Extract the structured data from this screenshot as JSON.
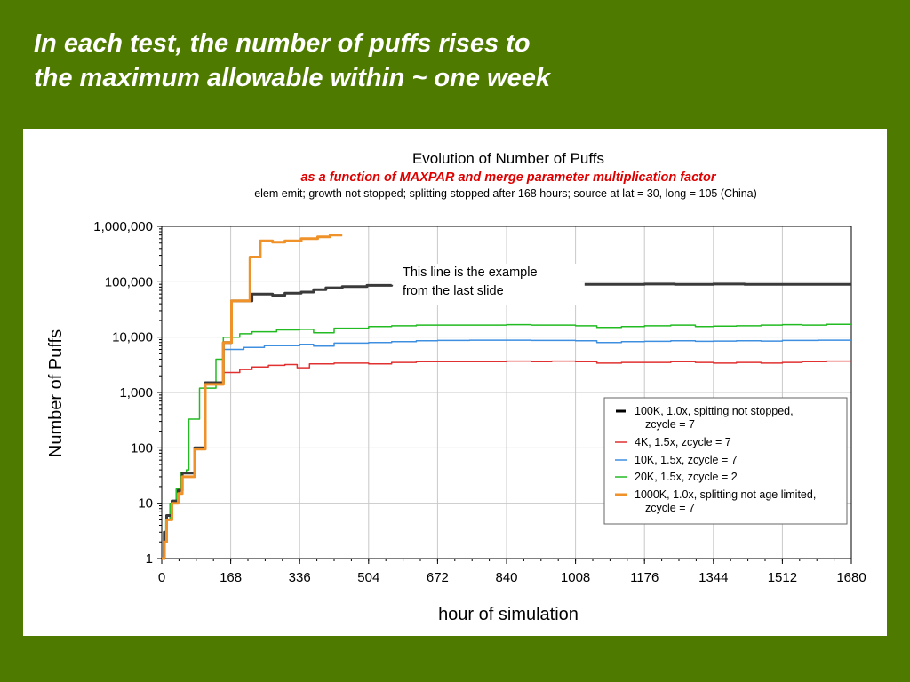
{
  "slide": {
    "title_line1": "In each test, the number of puffs rises to",
    "title_line2": "the maximum allowable within ~ one week",
    "background": "#4f7a00"
  },
  "chart_data": {
    "type": "line",
    "title": "Evolution of Number of Puffs",
    "subtitle": "as a function of MAXPAR and merge parameter multiplication factor",
    "subtitle2": "elem emit; growth not stopped; splitting stopped after 168 hours; source at lat = 30, long = 105 (China)",
    "xlabel": "hour of simulation",
    "ylabel": "Number of Puffs",
    "xlim": [
      0,
      1680
    ],
    "ylim": [
      1,
      1000000
    ],
    "yscale": "log",
    "grid": true,
    "legend_position": "bottom-right",
    "x_ticks": [
      0,
      168,
      336,
      504,
      672,
      840,
      1008,
      1176,
      1344,
      1512,
      1680
    ],
    "x_tick_labels": [
      "0",
      "168",
      "336",
      "504",
      "672",
      "840",
      "1008",
      "1176",
      "1344",
      "1512",
      "1680"
    ],
    "y_ticks": [
      1,
      10,
      100,
      1000,
      10000,
      100000,
      1000000
    ],
    "y_tick_labels": [
      "1",
      "10",
      "100",
      "1,000",
      "10,000",
      "100,000",
      "1,000,000"
    ],
    "annotation": {
      "line1": "This line is the example",
      "line2": "from the last slide"
    },
    "series": [
      {
        "name": "100K, 1.0x, spitting not stopped, zcycle = 7",
        "legend_line1": "100K, 1.0x, spitting not stopped,",
        "legend_line2": "zcycle = 7",
        "color": "#3a3a3a",
        "width": 3,
        "points": [
          [
            0,
            1
          ],
          [
            4,
            1
          ],
          [
            6,
            3
          ],
          [
            12,
            6
          ],
          [
            25,
            11
          ],
          [
            40,
            17
          ],
          [
            50,
            35
          ],
          [
            72,
            35
          ],
          [
            80,
            100
          ],
          [
            96,
            100
          ],
          [
            106,
            1500
          ],
          [
            144,
            1500
          ],
          [
            150,
            8000
          ],
          [
            168,
            8000
          ],
          [
            170,
            45000
          ],
          [
            215,
            45000
          ],
          [
            220,
            60000
          ],
          [
            260,
            60000
          ],
          [
            270,
            57000
          ],
          [
            300,
            62000
          ],
          [
            340,
            65000
          ],
          [
            370,
            72000
          ],
          [
            400,
            78000
          ],
          [
            440,
            82000
          ],
          [
            500,
            86000
          ],
          [
            560,
            88000
          ]
        ],
        "points2": [
          [
            1030,
            90000
          ],
          [
            1100,
            90000
          ],
          [
            1176,
            91000
          ],
          [
            1250,
            90000
          ],
          [
            1344,
            91000
          ],
          [
            1420,
            90000
          ],
          [
            1512,
            90000
          ],
          [
            1600,
            90000
          ],
          [
            1680,
            90000
          ]
        ]
      },
      {
        "name": "4K, 1.5x, zcycle = 7",
        "legend_line1": "4K, 1.5x, zcycle = 7",
        "color": "#e03030",
        "width": 1.5,
        "points": [
          [
            0,
            1
          ],
          [
            4,
            1
          ],
          [
            6,
            3
          ],
          [
            12,
            6
          ],
          [
            25,
            11
          ],
          [
            40,
            17
          ],
          [
            50,
            35
          ],
          [
            72,
            35
          ],
          [
            80,
            100
          ],
          [
            96,
            100
          ],
          [
            106,
            1500
          ],
          [
            144,
            1500
          ],
          [
            150,
            2300
          ],
          [
            168,
            2300
          ],
          [
            190,
            2600
          ],
          [
            220,
            2900
          ],
          [
            260,
            3100
          ],
          [
            300,
            3200
          ],
          [
            330,
            2800
          ],
          [
            360,
            3300
          ],
          [
            420,
            3400
          ],
          [
            504,
            3300
          ],
          [
            560,
            3500
          ],
          [
            620,
            3600
          ],
          [
            672,
            3600
          ],
          [
            750,
            3600
          ],
          [
            840,
            3700
          ],
          [
            900,
            3600
          ],
          [
            950,
            3700
          ],
          [
            1008,
            3600
          ],
          [
            1060,
            3400
          ],
          [
            1120,
            3500
          ],
          [
            1176,
            3500
          ],
          [
            1240,
            3600
          ],
          [
            1300,
            3500
          ],
          [
            1344,
            3400
          ],
          [
            1400,
            3500
          ],
          [
            1460,
            3400
          ],
          [
            1512,
            3500
          ],
          [
            1560,
            3600
          ],
          [
            1620,
            3700
          ],
          [
            1680,
            3600
          ]
        ]
      },
      {
        "name": "10K, 1.5x, zcycle = 7",
        "legend_line1": "10K, 1.5x, zcycle = 7",
        "color": "#3f8fe0",
        "width": 1.5,
        "points": [
          [
            0,
            1
          ],
          [
            4,
            1
          ],
          [
            6,
            3
          ],
          [
            12,
            6
          ],
          [
            25,
            11
          ],
          [
            40,
            17
          ],
          [
            50,
            35
          ],
          [
            72,
            35
          ],
          [
            80,
            100
          ],
          [
            96,
            100
          ],
          [
            106,
            1500
          ],
          [
            144,
            1500
          ],
          [
            150,
            6000
          ],
          [
            168,
            6000
          ],
          [
            200,
            6500
          ],
          [
            250,
            7000
          ],
          [
            300,
            7000
          ],
          [
            336,
            7400
          ],
          [
            370,
            6900
          ],
          [
            420,
            7800
          ],
          [
            504,
            8000
          ],
          [
            560,
            8300
          ],
          [
            620,
            8600
          ],
          [
            672,
            8700
          ],
          [
            750,
            8800
          ],
          [
            840,
            8800
          ],
          [
            900,
            8700
          ],
          [
            1008,
            8600
          ],
          [
            1060,
            8000
          ],
          [
            1120,
            8300
          ],
          [
            1176,
            8400
          ],
          [
            1240,
            8600
          ],
          [
            1300,
            8400
          ],
          [
            1344,
            8500
          ],
          [
            1400,
            8600
          ],
          [
            1460,
            8500
          ],
          [
            1512,
            8700
          ],
          [
            1600,
            8800
          ],
          [
            1680,
            8800
          ]
        ]
      },
      {
        "name": "20K, 1.5x, zcycle = 2",
        "legend_line1": "20K, 1.5x, zcycle = 2",
        "color": "#22bb22",
        "width": 1.5,
        "points": [
          [
            0,
            1
          ],
          [
            2,
            1
          ],
          [
            4,
            2
          ],
          [
            10,
            5
          ],
          [
            20,
            10
          ],
          [
            35,
            18
          ],
          [
            45,
            35
          ],
          [
            60,
            40
          ],
          [
            66,
            330
          ],
          [
            88,
            330
          ],
          [
            92,
            1200
          ],
          [
            126,
            1200
          ],
          [
            132,
            4000
          ],
          [
            144,
            4000
          ],
          [
            150,
            10000
          ],
          [
            168,
            10000
          ],
          [
            190,
            11500
          ],
          [
            220,
            12500
          ],
          [
            280,
            13500
          ],
          [
            336,
            13800
          ],
          [
            370,
            12000
          ],
          [
            420,
            14500
          ],
          [
            504,
            15500
          ],
          [
            560,
            16000
          ],
          [
            620,
            16500
          ],
          [
            672,
            16500
          ],
          [
            750,
            16500
          ],
          [
            840,
            16800
          ],
          [
            900,
            16500
          ],
          [
            1008,
            16000
          ],
          [
            1060,
            15000
          ],
          [
            1120,
            15500
          ],
          [
            1176,
            16000
          ],
          [
            1240,
            16500
          ],
          [
            1300,
            15500
          ],
          [
            1344,
            15800
          ],
          [
            1400,
            16000
          ],
          [
            1460,
            16500
          ],
          [
            1512,
            16800
          ],
          [
            1560,
            16500
          ],
          [
            1620,
            17000
          ],
          [
            1680,
            17000
          ]
        ]
      },
      {
        "name": "1000K, 1.0x, splitting not age limited, zcycle = 7",
        "legend_line1": "1000K, 1.0x, splitting not age limited,",
        "legend_line2": "zcycle = 7",
        "color": "#f0922a",
        "width": 3,
        "points": [
          [
            0,
            1
          ],
          [
            4,
            1
          ],
          [
            6,
            2
          ],
          [
            12,
            5
          ],
          [
            25,
            10
          ],
          [
            40,
            15
          ],
          [
            50,
            30
          ],
          [
            72,
            30
          ],
          [
            80,
            95
          ],
          [
            96,
            95
          ],
          [
            106,
            1400
          ],
          [
            144,
            1400
          ],
          [
            150,
            8000
          ],
          [
            168,
            8000
          ],
          [
            170,
            45000
          ],
          [
            210,
            45000
          ],
          [
            215,
            280000
          ],
          [
            235,
            280000
          ],
          [
            240,
            550000
          ],
          [
            260,
            550000
          ],
          [
            270,
            520000
          ],
          [
            300,
            550000
          ],
          [
            340,
            600000
          ],
          [
            380,
            650000
          ],
          [
            410,
            700000
          ],
          [
            440,
            700000
          ]
        ]
      }
    ]
  }
}
